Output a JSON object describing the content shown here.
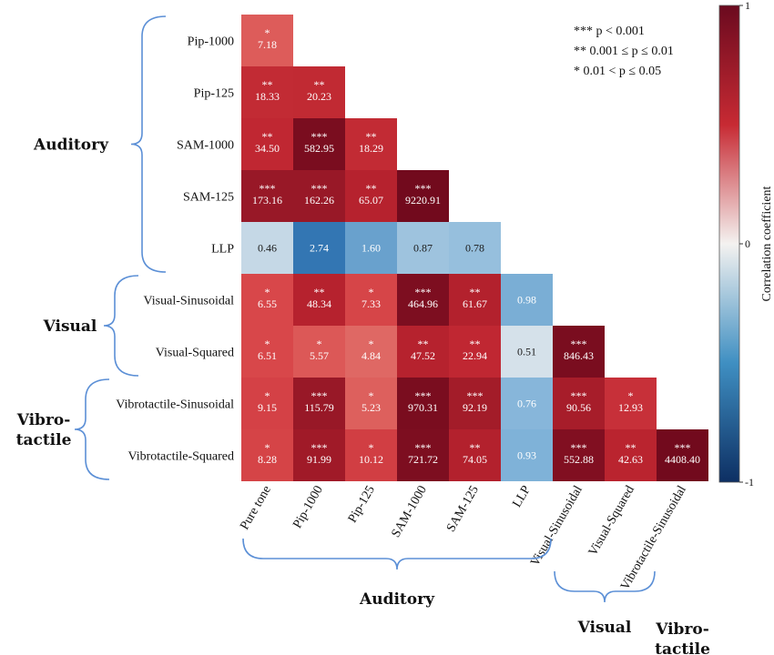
{
  "chart_data": {
    "type": "heatmap",
    "rows": [
      "Pip-1000",
      "Pip-125",
      "SAM-1000",
      "SAM-125",
      "LLP",
      "Visual-Sinusoidal",
      "Visual-Squared",
      "Vibrotactile-Sinusoidal",
      "Vibrotactile-Squared"
    ],
    "columns": [
      "Pure tone",
      "Pip-1000",
      "Pip-125",
      "SAM-1000",
      "SAM-125",
      "LLP",
      "Visual-Sinusoidal",
      "Visual-Squared",
      "Vibrotactile-Sinusoidal"
    ],
    "cells": [
      [
        {
          "v": 0.45,
          "label": "7.18",
          "sig": "*"
        }
      ],
      [
        {
          "v": 0.75,
          "label": "18.33",
          "sig": "**"
        },
        {
          "v": 0.76,
          "label": "20.23",
          "sig": "**"
        }
      ],
      [
        {
          "v": 0.78,
          "label": "34.50",
          "sig": "**"
        },
        {
          "v": 0.98,
          "label": "582.95",
          "sig": "***"
        },
        {
          "v": 0.75,
          "label": "18.29",
          "sig": "**"
        }
      ],
      [
        {
          "v": 0.9,
          "label": "173.16",
          "sig": "***"
        },
        {
          "v": 0.9,
          "label": "162.26",
          "sig": "***"
        },
        {
          "v": 0.82,
          "label": "65.07",
          "sig": "**"
        },
        {
          "v": 1.0,
          "label": "9220.91",
          "sig": "***"
        }
      ],
      [
        {
          "v": -0.12,
          "label": "0.46",
          "sig": ""
        },
        {
          "v": -0.58,
          "label": "2.74",
          "sig": ""
        },
        {
          "v": -0.38,
          "label": "1.60",
          "sig": ""
        },
        {
          "v": -0.22,
          "label": "0.87",
          "sig": ""
        },
        {
          "v": -0.24,
          "label": "0.78",
          "sig": ""
        }
      ],
      [
        {
          "v": 0.5,
          "label": "6.55",
          "sig": "*"
        },
        {
          "v": 0.82,
          "label": "48.34",
          "sig": "**"
        },
        {
          "v": 0.52,
          "label": "7.33",
          "sig": "*"
        },
        {
          "v": 0.97,
          "label": "464.96",
          "sig": "***"
        },
        {
          "v": 0.83,
          "label": "61.67",
          "sig": "**"
        },
        {
          "v": -0.32,
          "label": "0.98",
          "sig": ""
        }
      ],
      [
        {
          "v": 0.5,
          "label": "6.51",
          "sig": "*"
        },
        {
          "v": 0.46,
          "label": "5.57",
          "sig": "*"
        },
        {
          "v": 0.42,
          "label": "4.84",
          "sig": "*"
        },
        {
          "v": 0.82,
          "label": "47.52",
          "sig": "**"
        },
        {
          "v": 0.78,
          "label": "22.94",
          "sig": "**"
        },
        {
          "v": -0.08,
          "label": "0.51",
          "sig": ""
        },
        {
          "v": 0.98,
          "label": "846.43",
          "sig": "***"
        }
      ],
      [
        {
          "v": 0.55,
          "label": "9.15",
          "sig": "*"
        },
        {
          "v": 0.9,
          "label": "115.79",
          "sig": "***"
        },
        {
          "v": 0.44,
          "label": "5.23",
          "sig": "*"
        },
        {
          "v": 0.98,
          "label": "970.31",
          "sig": "***"
        },
        {
          "v": 0.87,
          "label": "92.19",
          "sig": "***"
        },
        {
          "v": -0.28,
          "label": "0.76",
          "sig": ""
        },
        {
          "v": 0.86,
          "label": "90.56",
          "sig": "***"
        },
        {
          "v": 0.7,
          "label": "12.93",
          "sig": "*"
        }
      ],
      [
        {
          "v": 0.53,
          "label": "8.28",
          "sig": "*"
        },
        {
          "v": 0.88,
          "label": "91.99",
          "sig": "***"
        },
        {
          "v": 0.58,
          "label": "10.12",
          "sig": "*"
        },
        {
          "v": 0.97,
          "label": "721.72",
          "sig": "***"
        },
        {
          "v": 0.83,
          "label": "74.05",
          "sig": "**"
        },
        {
          "v": -0.3,
          "label": "0.93",
          "sig": ""
        },
        {
          "v": 0.96,
          "label": "552.88",
          "sig": "***"
        },
        {
          "v": 0.81,
          "label": "42.63",
          "sig": "**"
        },
        {
          "v": 1.0,
          "label": "4408.40",
          "sig": "***"
        }
      ]
    ],
    "colorbar": {
      "range": [
        -1,
        1
      ],
      "ticks": [
        {
          "value": 1,
          "label": "1"
        },
        {
          "value": 0,
          "label": "0"
        },
        {
          "value": -1,
          "label": "-1"
        }
      ],
      "label": "Correlation coefficient"
    },
    "significance_legend": [
      {
        "stars": "***",
        "text": "p < 0.001"
      },
      {
        "stars": "**",
        "text": "0.001 ≤ p ≤ 0.01"
      },
      {
        "stars": "*",
        "text": "0.01 < p ≤ 0.05"
      }
    ],
    "row_groups": [
      {
        "label_lines": [
          "Auditory"
        ],
        "first_row": 0,
        "last_row": 4
      },
      {
        "label_lines": [
          "Visual"
        ],
        "first_row": 5,
        "last_row": 6
      },
      {
        "label_lines": [
          "Vibro-",
          "tactile"
        ],
        "first_row": 7,
        "last_row": 8
      }
    ],
    "column_groups": [
      {
        "label_lines": [
          "Auditory"
        ],
        "first_col": 0,
        "last_col": 5
      },
      {
        "label_lines": [
          "Visual"
        ],
        "first_col": 6,
        "last_col": 7
      },
      {
        "label_lines": [
          "Vibro-",
          "tactile"
        ],
        "first_col": 8,
        "last_col": 8
      }
    ],
    "colors": {
      "negative": "#1a4e8c",
      "neutral": "#f4f2f0",
      "positive": "#7a0a1c",
      "group_bracket": "#5b8fd6"
    }
  }
}
